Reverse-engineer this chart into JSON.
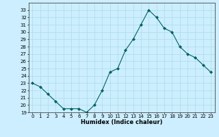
{
  "title": "",
  "xlabel": "Humidex (Indice chaleur)",
  "ylabel": "",
  "x_values": [
    0,
    1,
    2,
    3,
    4,
    5,
    6,
    7,
    8,
    9,
    10,
    11,
    12,
    13,
    14,
    15,
    16,
    17,
    18,
    19,
    20,
    21,
    22,
    23
  ],
  "y_values": [
    23,
    22.5,
    21.5,
    20.5,
    19.5,
    19.5,
    19.5,
    19,
    20,
    22,
    24.5,
    25,
    27.5,
    29,
    31,
    33,
    32,
    30.5,
    30,
    28,
    27,
    26.5,
    25.5,
    24.5
  ],
  "line_color": "#006060",
  "marker_color": "#006060",
  "bg_color": "#cceeff",
  "grid_color": "#aadddd",
  "ylim": [
    19,
    34
  ],
  "xlim": [
    -0.5,
    23.5
  ],
  "yticks": [
    19,
    20,
    21,
    22,
    23,
    24,
    25,
    26,
    27,
    28,
    29,
    30,
    31,
    32,
    33
  ],
  "xticks": [
    0,
    1,
    2,
    3,
    4,
    5,
    6,
    7,
    8,
    9,
    10,
    11,
    12,
    13,
    14,
    15,
    16,
    17,
    18,
    19,
    20,
    21,
    22,
    23
  ],
  "tick_fontsize": 5,
  "xlabel_fontsize": 6,
  "linewidth": 0.8,
  "markersize": 2.0
}
